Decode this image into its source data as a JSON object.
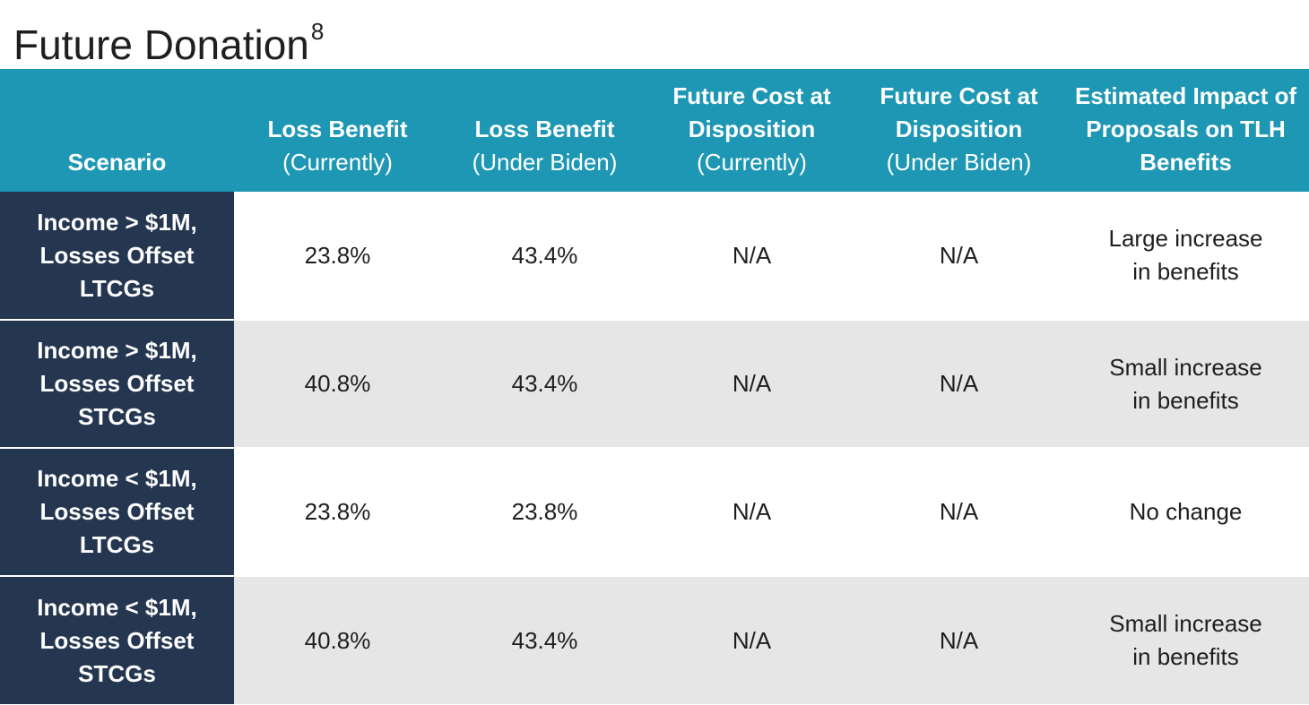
{
  "title": {
    "text": "Future Donation",
    "superscript": "8"
  },
  "table": {
    "header_color": "#1d97b3",
    "scenario_color": "#243650",
    "alt_row_color": "#e6e6e6",
    "columns": [
      {
        "main": "Scenario",
        "sub": ""
      },
      {
        "main": "Loss Benefit",
        "sub": "(Currently)"
      },
      {
        "main": "Loss Benefit",
        "sub": "(Under Biden)"
      },
      {
        "main": "Future Cost at Disposition",
        "sub": "(Currently)"
      },
      {
        "main": "Future Cost at Disposition",
        "sub": "(Under Biden)"
      },
      {
        "main": "Estimated Impact of Proposals on TLH Benefits",
        "sub": ""
      }
    ],
    "rows": [
      {
        "scenario": [
          "Income > $1M,",
          "Losses Offset",
          "LTCGs"
        ],
        "loss_current": "23.8%",
        "loss_biden": "43.4%",
        "cost_current": "N/A",
        "cost_biden": "N/A",
        "impact": [
          "Large increase",
          "in benefits"
        ]
      },
      {
        "scenario": [
          "Income > $1M,",
          "Losses Offset",
          "STCGs"
        ],
        "loss_current": "40.8%",
        "loss_biden": "43.4%",
        "cost_current": "N/A",
        "cost_biden": "N/A",
        "impact": [
          "Small increase",
          "in benefits"
        ]
      },
      {
        "scenario": [
          "Income < $1M,",
          "Losses Offset",
          "LTCGs"
        ],
        "loss_current": "23.8%",
        "loss_biden": "23.8%",
        "cost_current": "N/A",
        "cost_biden": "N/A",
        "impact": [
          "No change"
        ]
      },
      {
        "scenario": [
          "Income < $1M,",
          "Losses Offset",
          "STCGs"
        ],
        "loss_current": "40.8%",
        "loss_biden": "43.4%",
        "cost_current": "N/A",
        "cost_biden": "N/A",
        "impact": [
          "Small increase",
          "in benefits"
        ]
      }
    ]
  }
}
